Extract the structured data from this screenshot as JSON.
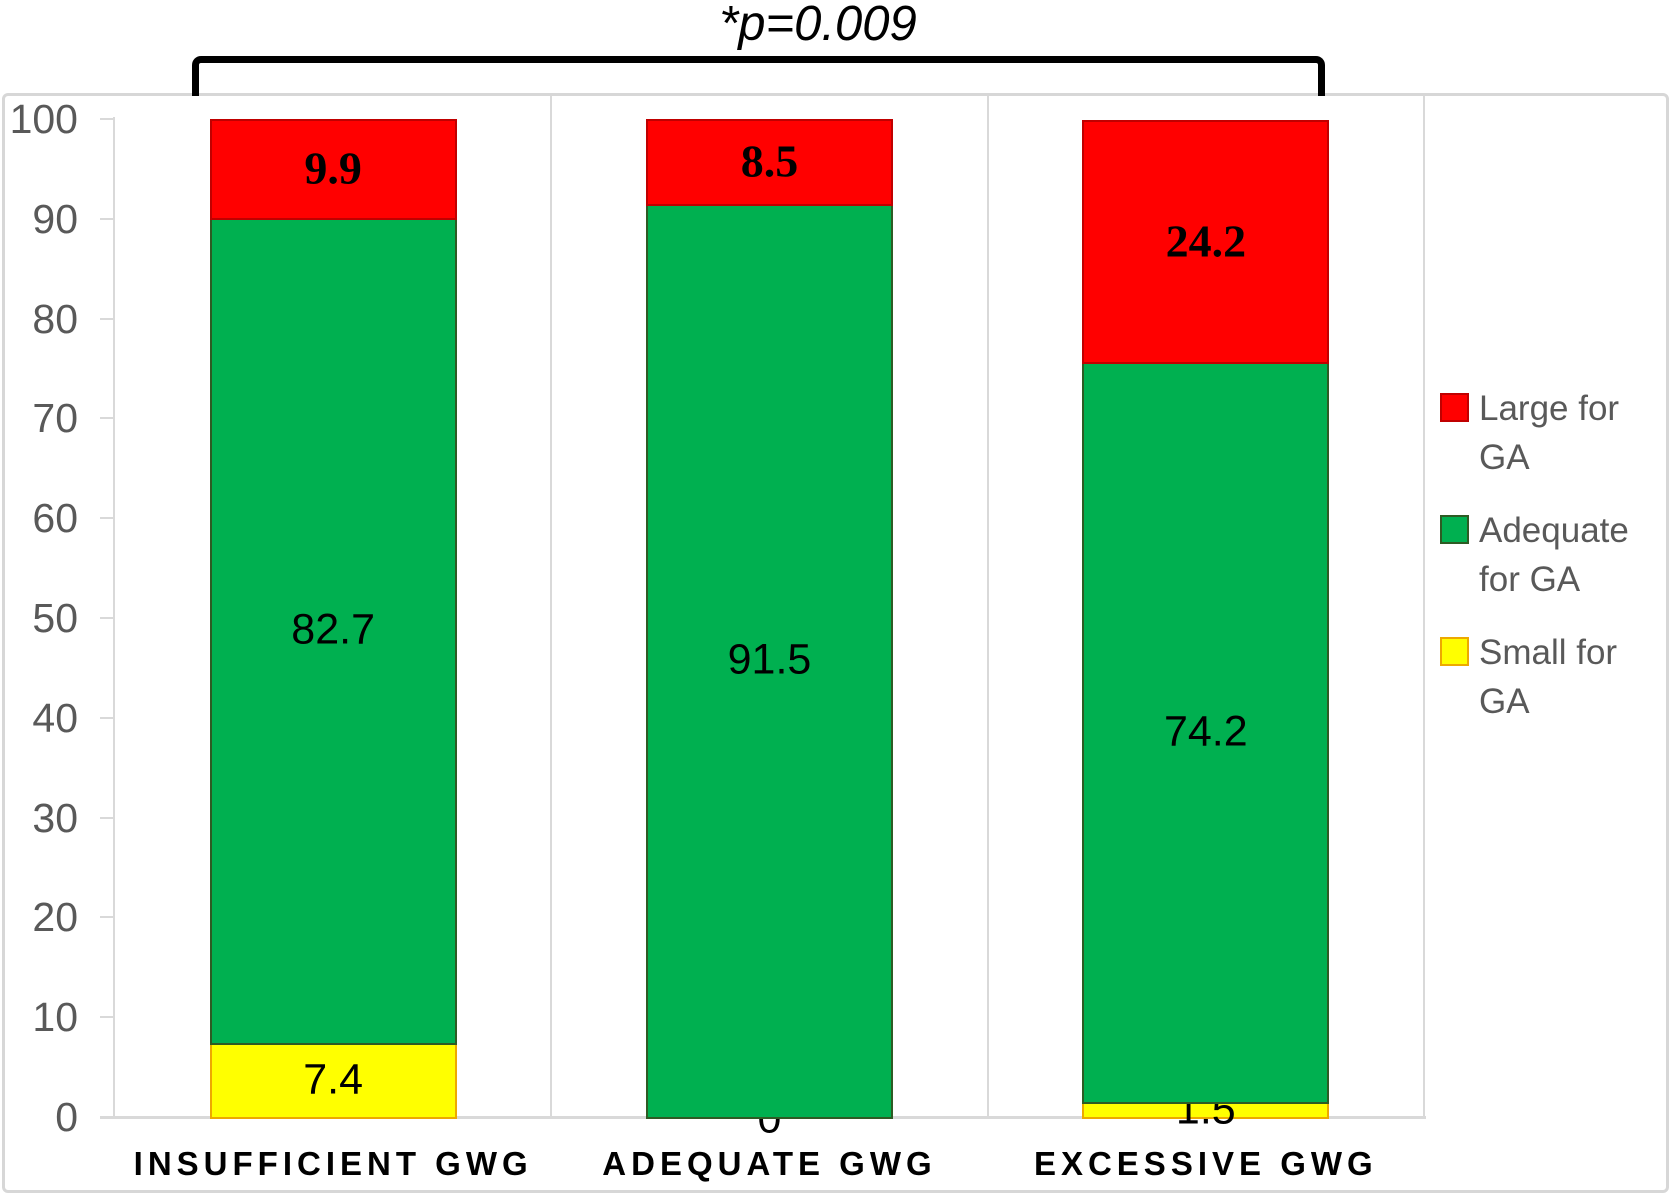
{
  "chart_data": {
    "type": "bar",
    "stacked": true,
    "annotation": "*p=0.009",
    "categories": [
      "INSUFFICIENT GWG",
      "ADEQUATE GWG",
      "EXCESSIVE GWG"
    ],
    "series": [
      {
        "name": "Small for GA",
        "values": [
          7.4,
          0,
          1.5
        ],
        "color": "#FFFF00",
        "border_color": "#EDA900"
      },
      {
        "name": "Adequate for GA",
        "values": [
          82.7,
          91.5,
          74.2
        ],
        "color": "#00B050",
        "border_color": "#2E5B24"
      },
      {
        "name": "Large for GA",
        "values": [
          9.9,
          8.5,
          24.2
        ],
        "color": "#FF0000",
        "border_color": "#C00000"
      }
    ],
    "data_labels": {
      "Small for GA": [
        "7.4",
        "0",
        "1.5"
      ],
      "Adequate for GA": [
        "82.7",
        "91.5",
        "74.2"
      ],
      "Large for GA": [
        "9.9",
        "8.5",
        "24.2"
      ]
    },
    "ylim": [
      0,
      100
    ],
    "yticks": [
      0,
      10,
      20,
      30,
      40,
      50,
      60,
      70,
      80,
      90,
      100
    ],
    "grid": "vertical-category-separators",
    "legend_position": "right",
    "legend_items": [
      {
        "label": "Large for GA",
        "color": "#FF0000",
        "border_color": "#C00000"
      },
      {
        "label": "Adequate for GA",
        "color": "#00B050",
        "border_color": "#2E5B24"
      },
      {
        "label": "Small for GA",
        "color": "#FFFF00",
        "border_color": "#EDA900"
      }
    ],
    "bracket": {
      "connects": [
        "INSUFFICIENT GWG",
        "EXCESSIVE GWG"
      ],
      "label": "*p=0.009"
    },
    "colors": {
      "axis_text": "#595959",
      "axis_line": "#D9D9D9",
      "frame_border": "#D7D7D7",
      "annotation_text": "#000000"
    }
  }
}
